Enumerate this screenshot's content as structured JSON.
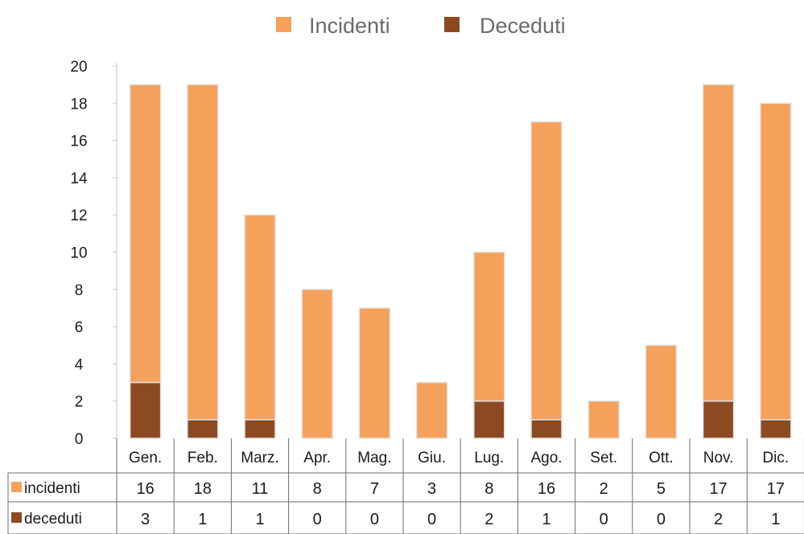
{
  "chart_data": {
    "type": "bar",
    "stacked": true,
    "categories": [
      "Gen.",
      "Feb.",
      "Marz.",
      "Apr.",
      "Mag.",
      "Giu.",
      "Lug.",
      "Ago.",
      "Set.",
      "Ott.",
      "Nov.",
      "Dic."
    ],
    "series": [
      {
        "name": "Deceduti",
        "table_label": "deceduti",
        "color": "#8b4a22",
        "values": [
          3,
          1,
          1,
          0,
          0,
          0,
          2,
          1,
          0,
          0,
          2,
          1
        ]
      },
      {
        "name": "Incidenti",
        "table_label": "incidenti",
        "color": "#f5a15c",
        "values": [
          16,
          18,
          11,
          8,
          7,
          3,
          8,
          16,
          2,
          5,
          17,
          17
        ]
      }
    ],
    "ylim": [
      0,
      20
    ],
    "yticks": [
      0,
      2,
      4,
      6,
      8,
      10,
      12,
      14,
      16,
      18,
      20
    ],
    "legend_position": "top",
    "data_table": true,
    "grid": false
  }
}
